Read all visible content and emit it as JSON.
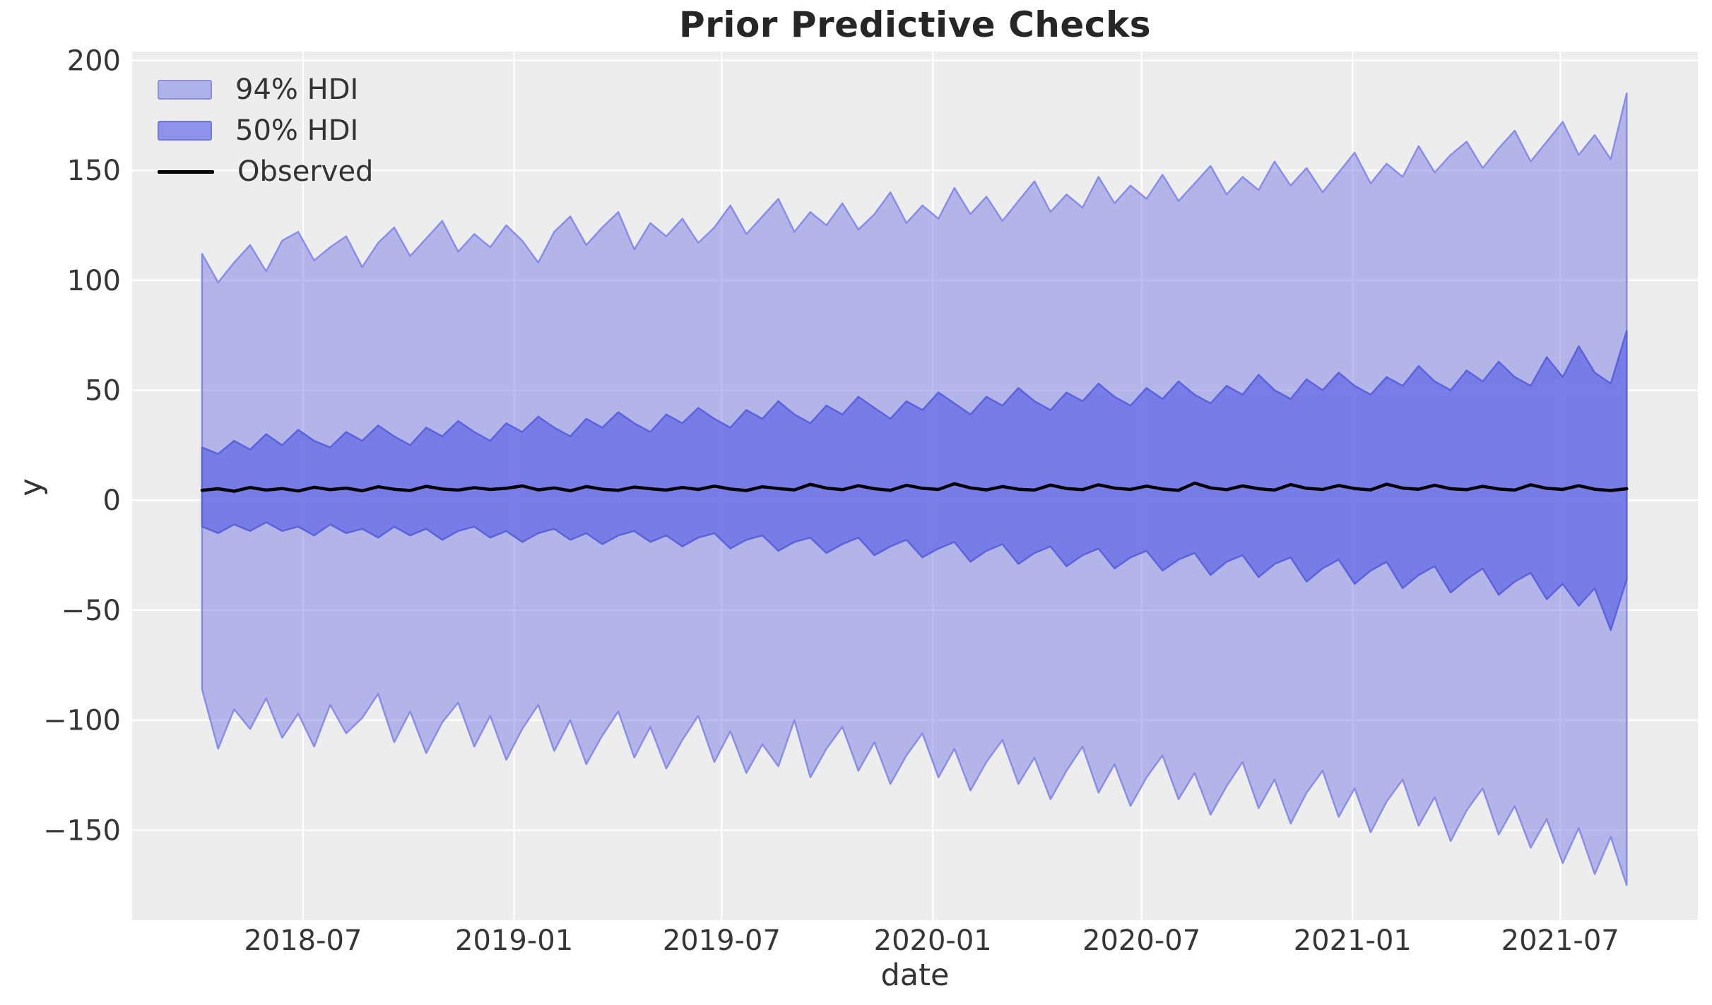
{
  "chart_data": {
    "type": "area",
    "title": "Prior Predictive Checks",
    "xlabel": "date",
    "ylabel": "y",
    "grid": true,
    "legend_position": "upper-left",
    "legend": [
      {
        "label": "94% HDI",
        "type": "patch",
        "fill": "#b0b3ea",
        "edge": "#8a8ee9"
      },
      {
        "label": "50% HDI",
        "type": "patch",
        "fill": "#8e92ea",
        "edge": "#7277e5"
      },
      {
        "label": "Observed",
        "type": "line",
        "color": "#000000"
      }
    ],
    "x_domain": [
      "2018-02-02",
      "2021-10-29"
    ],
    "data_x_range": [
      "2018-04-04",
      "2021-08-28"
    ],
    "x_tick_labels": [
      "2018-07",
      "2019-01",
      "2019-07",
      "2020-01",
      "2020-07",
      "2021-01",
      "2021-07"
    ],
    "x_tick_dates": [
      "2018-07-01",
      "2019-01-01",
      "2019-07-01",
      "2020-01-01",
      "2020-07-01",
      "2021-01-01",
      "2021-07-01"
    ],
    "y_tick_labels": [
      "200",
      "150",
      "100",
      "50",
      "0",
      "−50",
      "−100",
      "−150"
    ],
    "y_tick_values": [
      200,
      150,
      100,
      50,
      0,
      -50,
      -100,
      -150
    ],
    "ylim": [
      -191,
      204
    ],
    "colors": {
      "plot_bg": "#ededed",
      "grid": "#ffffff",
      "hdi94_fill": "rgba(122,126,230,0.5)",
      "hdi94_edge": "#898de9",
      "hdi50_fill": "rgba(116,121,231,0.95)",
      "hdi50_edge": "#5c62dc",
      "observed": "#000000",
      "tick_color": "#363636"
    },
    "series": [
      {
        "name": "94% HDI upper",
        "values": [
          112,
          99,
          108,
          116,
          104,
          118,
          122,
          109,
          115,
          120,
          106,
          117,
          124,
          111,
          119,
          127,
          113,
          121,
          115,
          125,
          118,
          108,
          122,
          129,
          116,
          124,
          131,
          114,
          126,
          120,
          128,
          117,
          124,
          134,
          121,
          129,
          137,
          122,
          131,
          125,
          135,
          123,
          130,
          140,
          126,
          134,
          128,
          142,
          130,
          138,
          127,
          136,
          145,
          131,
          139,
          133,
          147,
          135,
          143,
          137,
          148,
          136,
          144,
          152,
          139,
          147,
          141,
          154,
          143,
          151,
          140,
          149,
          158,
          144,
          153,
          147,
          161,
          149,
          157,
          163,
          151,
          160,
          168,
          154,
          163,
          172,
          157,
          166,
          155,
          185
        ]
      },
      {
        "name": "94% HDI lower",
        "values": [
          -86,
          -113,
          -95,
          -104,
          -90,
          -108,
          -97,
          -112,
          -93,
          -106,
          -99,
          -88,
          -110,
          -96,
          -115,
          -101,
          -92,
          -112,
          -98,
          -118,
          -104,
          -93,
          -114,
          -100,
          -120,
          -107,
          -96,
          -117,
          -103,
          -122,
          -109,
          -98,
          -119,
          -105,
          -124,
          -111,
          -121,
          -100,
          -126,
          -113,
          -103,
          -123,
          -110,
          -129,
          -116,
          -106,
          -126,
          -113,
          -132,
          -119,
          -109,
          -129,
          -117,
          -136,
          -123,
          -112,
          -133,
          -120,
          -139,
          -126,
          -116,
          -136,
          -124,
          -143,
          -130,
          -119,
          -140,
          -127,
          -147,
          -133,
          -123,
          -144,
          -131,
          -151,
          -137,
          -127,
          -148,
          -135,
          -155,
          -141,
          -131,
          -152,
          -139,
          -158,
          -145,
          -165,
          -149,
          -170,
          -153,
          -175
        ]
      },
      {
        "name": "50% HDI upper",
        "values": [
          24,
          21,
          27,
          23,
          30,
          25,
          32,
          27,
          24,
          31,
          27,
          34,
          29,
          25,
          33,
          29,
          36,
          31,
          27,
          35,
          31,
          38,
          33,
          29,
          37,
          33,
          40,
          35,
          31,
          39,
          35,
          42,
          37,
          33,
          41,
          37,
          45,
          39,
          35,
          43,
          39,
          47,
          42,
          37,
          45,
          41,
          49,
          44,
          39,
          47,
          43,
          51,
          45,
          41,
          49,
          45,
          53,
          47,
          43,
          51,
          46,
          54,
          48,
          44,
          52,
          48,
          57,
          50,
          46,
          55,
          50,
          58,
          52,
          48,
          56,
          52,
          61,
          54,
          50,
          59,
          54,
          63,
          56,
          52,
          65,
          56,
          70,
          58,
          53,
          77
        ]
      },
      {
        "name": "50% HDI lower",
        "values": [
          -12,
          -15,
          -11,
          -14,
          -10,
          -14,
          -12,
          -16,
          -11,
          -15,
          -13,
          -17,
          -12,
          -16,
          -13,
          -18,
          -14,
          -12,
          -17,
          -14,
          -19,
          -15,
          -13,
          -18,
          -15,
          -20,
          -16,
          -14,
          -19,
          -16,
          -21,
          -17,
          -15,
          -22,
          -18,
          -16,
          -23,
          -19,
          -17,
          -24,
          -20,
          -17,
          -25,
          -21,
          -18,
          -26,
          -22,
          -19,
          -28,
          -23,
          -20,
          -29,
          -24,
          -21,
          -30,
          -25,
          -22,
          -31,
          -26,
          -23,
          -32,
          -27,
          -24,
          -34,
          -28,
          -25,
          -35,
          -29,
          -26,
          -37,
          -31,
          -27,
          -38,
          -32,
          -28,
          -40,
          -34,
          -30,
          -42,
          -36,
          -31,
          -43,
          -37,
          -33,
          -45,
          -38,
          -48,
          -40,
          -59,
          -36
        ]
      },
      {
        "name": "Observed",
        "values": [
          4.5,
          5.2,
          4.1,
          5.8,
          4.6,
          5.3,
          4.2,
          5.9,
          4.8,
          5.5,
          4.3,
          6.1,
          5.0,
          4.4,
          6.3,
          5.1,
          4.6,
          5.7,
          4.9,
          5.4,
          6.5,
          4.7,
          5.6,
          4.3,
          6.2,
          5.0,
          4.5,
          6.0,
          5.2,
          4.6,
          5.8,
          4.9,
          6.4,
          5.1,
          4.4,
          6.1,
          5.3,
          4.7,
          7.2,
          5.5,
          4.8,
          6.6,
          5.2,
          4.5,
          6.8,
          5.4,
          4.9,
          7.5,
          5.6,
          4.7,
          6.2,
          5.0,
          4.6,
          6.9,
          5.3,
          4.8,
          7.0,
          5.5,
          4.9,
          6.4,
          5.1,
          4.5,
          7.8,
          5.6,
          4.8,
          6.5,
          5.2,
          4.6,
          7.1,
          5.4,
          4.9,
          6.7,
          5.3,
          4.7,
          7.3,
          5.5,
          5.0,
          6.8,
          5.2,
          4.8,
          6.3,
          5.1,
          4.6,
          7.0,
          5.4,
          4.9,
          6.6,
          5.0,
          4.4,
          5.2
        ]
      }
    ]
  }
}
